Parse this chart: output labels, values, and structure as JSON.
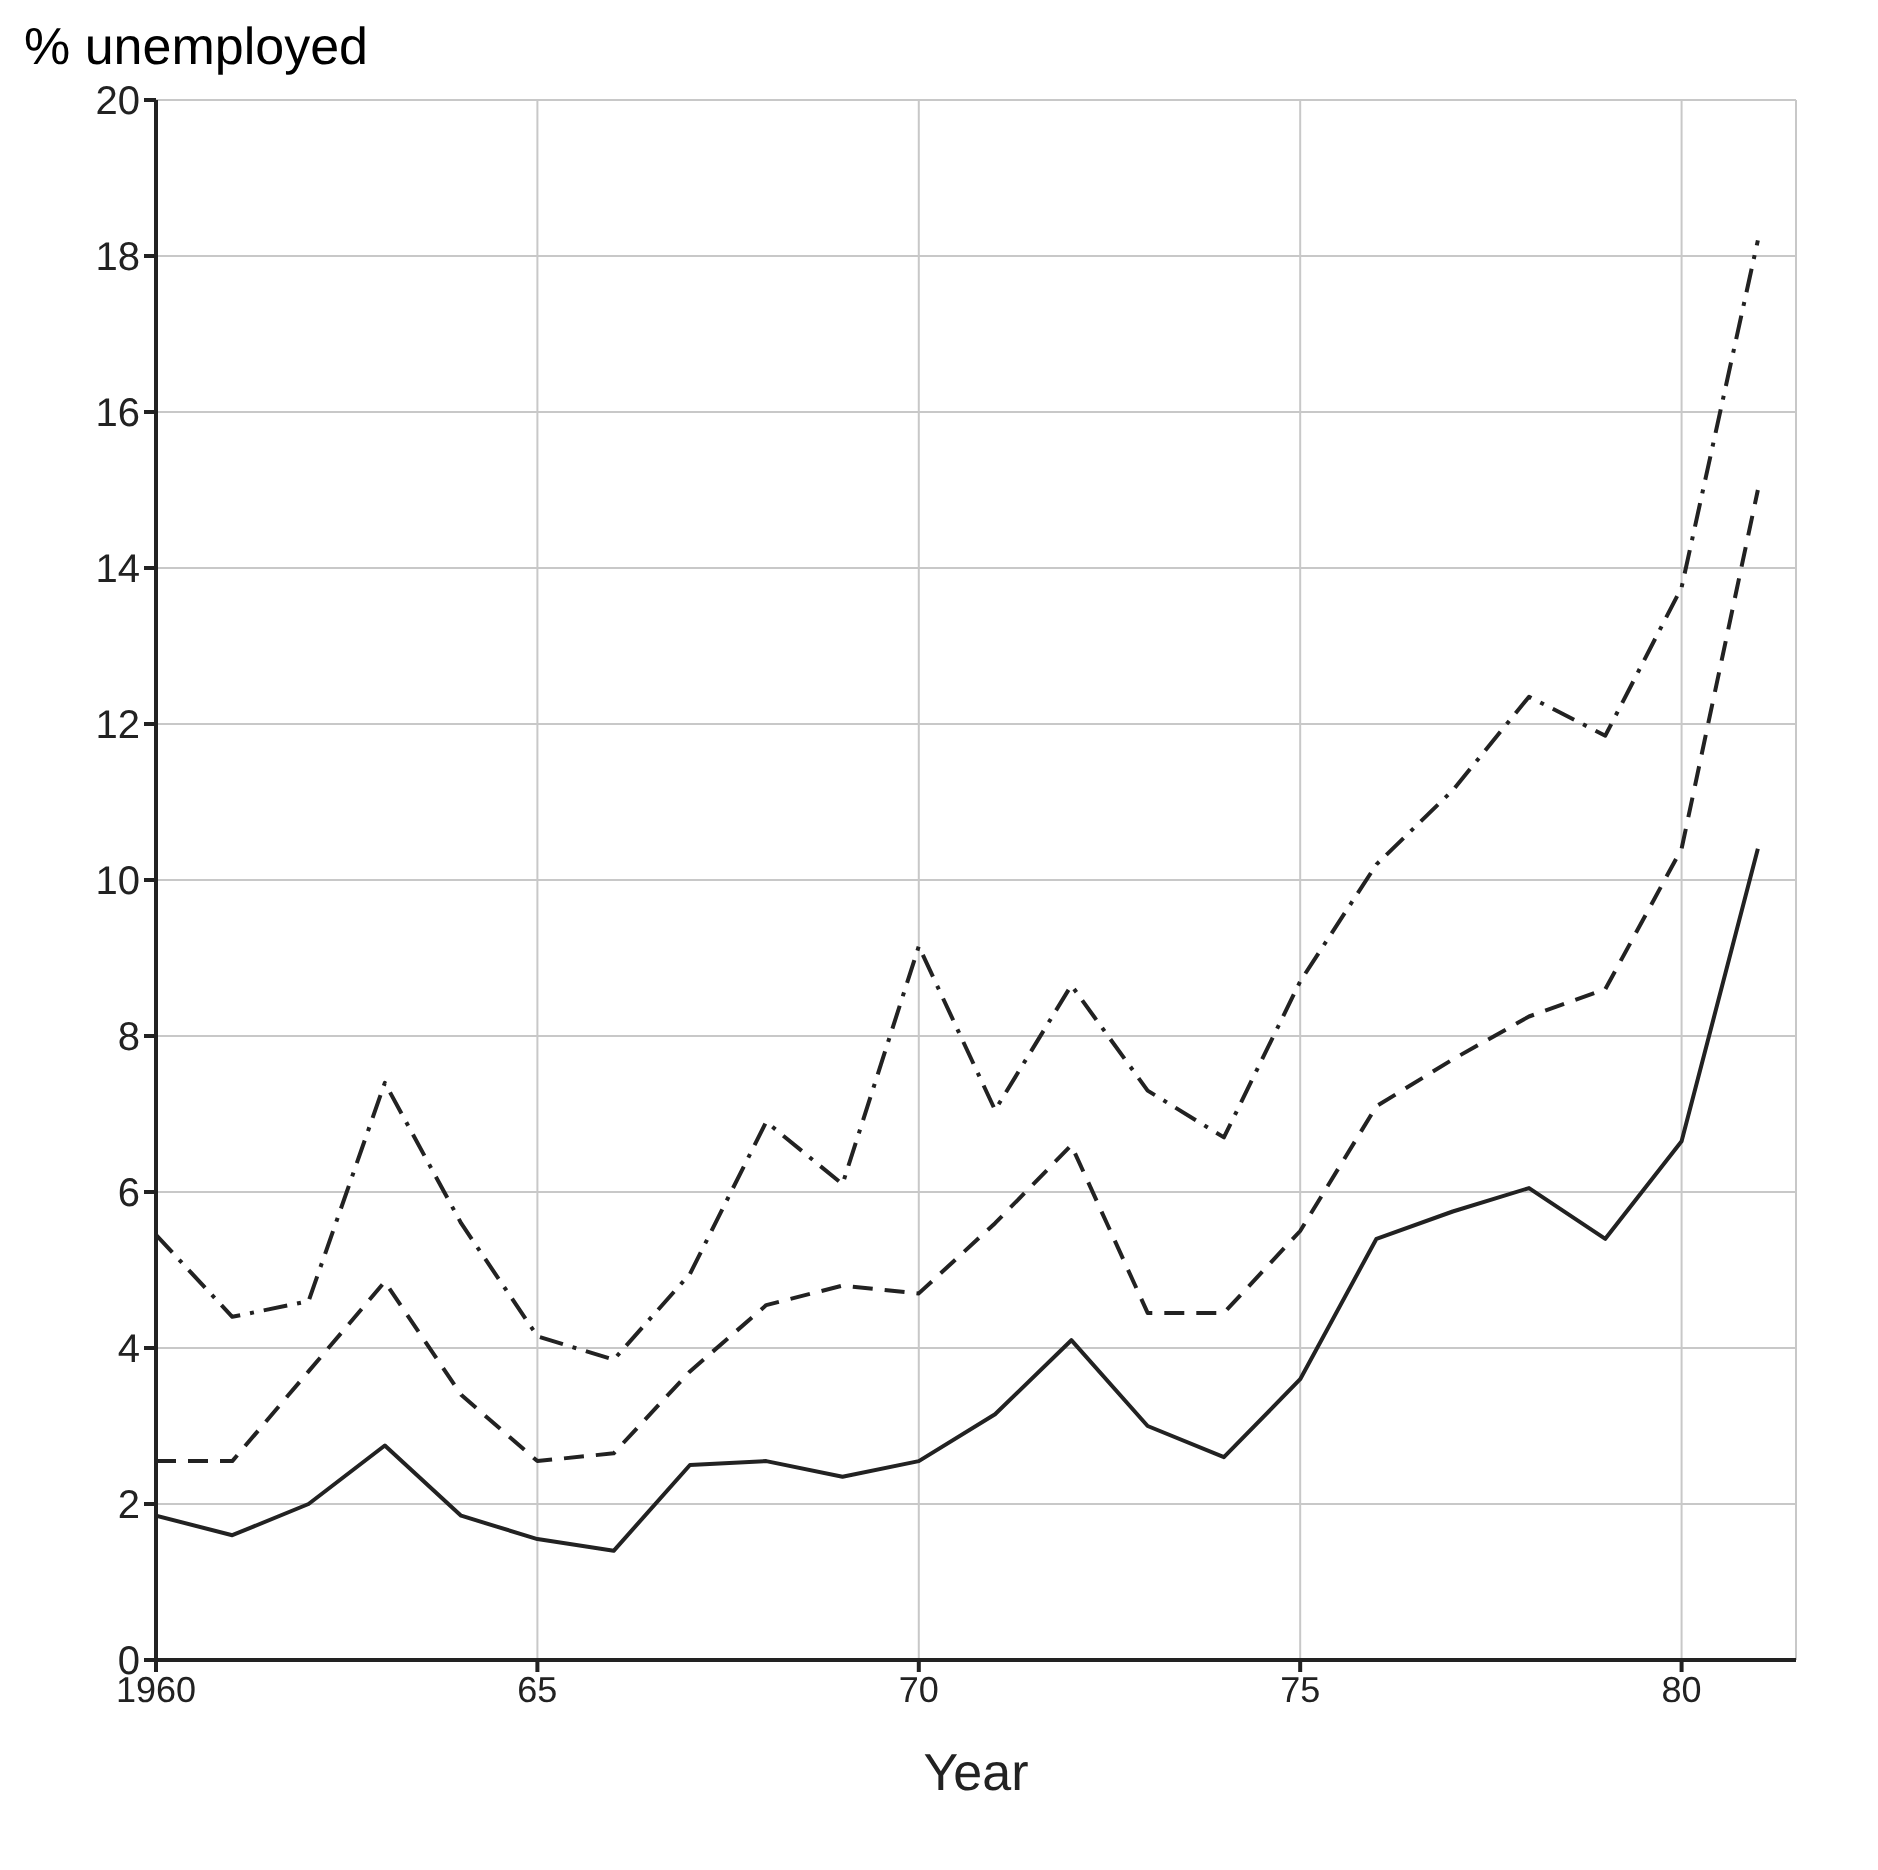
{
  "chart_data": {
    "type": "line",
    "xlabel": "Year",
    "ylabel": "% unemployed",
    "x": [
      1960,
      1961,
      1962,
      1963,
      1964,
      1965,
      1966,
      1967,
      1968,
      1969,
      1970,
      1971,
      1972,
      1973,
      1974,
      1975,
      1976,
      1977,
      1978,
      1979,
      1980,
      1981
    ],
    "series": [
      {
        "color": "#222222",
        "line_style": "solid",
        "values": [
          1.85,
          1.6,
          2.0,
          2.75,
          1.85,
          1.55,
          1.4,
          2.5,
          2.55,
          2.35,
          2.55,
          3.15,
          4.1,
          3.0,
          2.6,
          3.6,
          5.4,
          5.75,
          6.05,
          5.4,
          6.65,
          10.4
        ]
      },
      {
        "color": "#222222",
        "line_style": "dashed",
        "values": [
          2.55,
          2.55,
          3.7,
          4.85,
          3.4,
          2.55,
          2.65,
          3.7,
          4.55,
          4.8,
          4.7,
          5.6,
          6.6,
          4.45,
          4.45,
          5.5,
          7.1,
          7.7,
          8.25,
          8.6,
          10.4,
          15.0
        ]
      },
      {
        "color": "#222222",
        "line_style": "dashdot",
        "values": [
          5.45,
          4.4,
          4.6,
          7.4,
          5.6,
          4.15,
          3.85,
          4.95,
          6.9,
          6.1,
          9.15,
          7.05,
          8.65,
          7.3,
          6.7,
          8.7,
          10.2,
          11.15,
          12.35,
          11.85,
          13.75,
          18.2
        ]
      }
    ],
    "xlim": [
      1960,
      1981.5
    ],
    "xticks": [
      {
        "value": 1960,
        "label": "1960"
      },
      {
        "value": 1965,
        "label": "65"
      },
      {
        "value": 1970,
        "label": "70"
      },
      {
        "value": 1975,
        "label": "75"
      },
      {
        "value": 1980,
        "label": "80"
      }
    ],
    "ylim": [
      0,
      20
    ],
    "yticks": [
      0,
      2,
      4,
      6,
      8,
      10,
      12,
      14,
      16,
      18,
      20
    ],
    "grid": true,
    "marker": "none"
  }
}
